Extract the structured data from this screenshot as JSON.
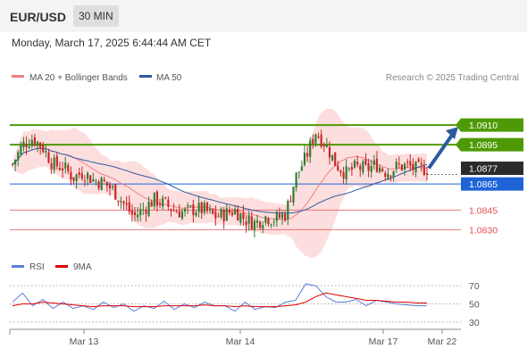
{
  "header": {
    "pair": "EUR/USD",
    "timeframe": "30 MIN"
  },
  "datetime": "Monday, March 17, 2025 6:44:44 AM CET",
  "legend": {
    "ma20": {
      "label": "MA 20 + Bollinger Bands",
      "color": "#f08080"
    },
    "ma50": {
      "label": "MA 50",
      "color": "#2c5aa0"
    }
  },
  "credit": "Research © 2025 Trading Central",
  "rsi_legend": {
    "rsi": {
      "label": "RSI",
      "color": "#5b7fd6"
    },
    "ma9": {
      "label": "9MA",
      "color": "#e00000"
    }
  },
  "chart_data": [
    {
      "type": "candlestick",
      "title": "",
      "ylim": [
        1.0818,
        1.0934
      ],
      "levels": [
        {
          "value": "1.0910",
          "kind": "resistance",
          "color": "#4e9a06"
        },
        {
          "value": "1.0895",
          "kind": "resistance",
          "color": "#4e9a06"
        },
        {
          "value": "1.0877",
          "kind": "current",
          "color": "#2b2b2b"
        },
        {
          "value": "1.0865",
          "kind": "pivot",
          "color": "#1f63d6"
        },
        {
          "value": "1.0845",
          "kind": "support",
          "color": "#e05050"
        },
        {
          "value": "1.0830",
          "kind": "support",
          "color": "#e05050"
        }
      ],
      "x_ticks": [
        "Mar 13",
        "Mar 14",
        "Mar 17",
        "Mar 22"
      ],
      "close_path": [
        1.088,
        1.0895,
        1.09,
        1.0893,
        1.088,
        1.0878,
        1.087,
        1.0874,
        1.0868,
        1.0866,
        1.086,
        1.085,
        1.084,
        1.0846,
        1.0853,
        1.085,
        1.0845,
        1.0843,
        1.0846,
        1.0845,
        1.084,
        1.0842,
        1.0845,
        1.0838,
        1.0835,
        1.084,
        1.0838,
        1.0842,
        1.087,
        1.0885,
        1.0905,
        1.0895,
        1.088,
        1.0873,
        1.0878,
        1.0876,
        1.088,
        1.0874,
        1.0878,
        1.0879,
        1.0876,
        1.0877
      ]
    },
    {
      "type": "line",
      "title": "RSI",
      "ylim": [
        25,
        80
      ],
      "y_ticks": [
        70,
        50,
        30
      ],
      "series": [
        {
          "name": "RSI",
          "values": [
            52,
            62,
            48,
            55,
            45,
            52,
            45,
            48,
            44,
            52,
            46,
            50,
            42,
            48,
            45,
            53,
            44,
            50,
            46,
            52,
            48,
            48,
            42,
            52,
            44,
            47,
            46,
            52,
            54,
            72,
            70,
            58,
            52,
            52,
            55,
            48,
            54,
            52,
            50,
            49,
            48,
            48
          ]
        },
        {
          "name": "9MA",
          "values": [
            48,
            50,
            50,
            52,
            51,
            50,
            49,
            48,
            47,
            48,
            48,
            48,
            47,
            47,
            47,
            48,
            48,
            48,
            48,
            49,
            48,
            48,
            47,
            48,
            47,
            47,
            47,
            48,
            49,
            52,
            58,
            62,
            60,
            58,
            56,
            54,
            54,
            53,
            52,
            52,
            51,
            51
          ]
        }
      ]
    }
  ]
}
